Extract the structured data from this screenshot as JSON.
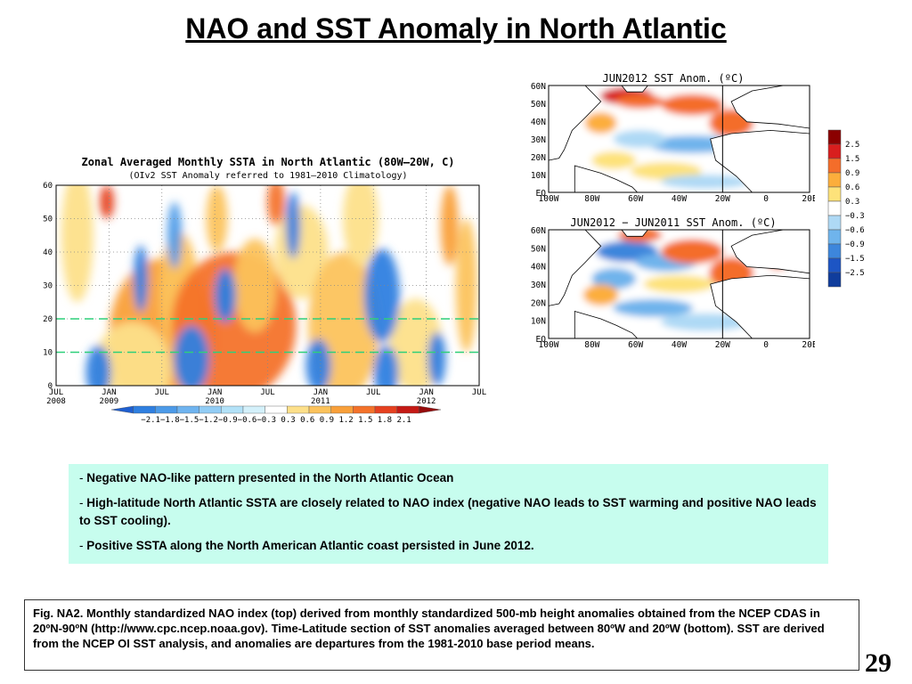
{
  "slide": {
    "title": "NAO and SST Anomaly in North Atlantic",
    "page_number": "29",
    "bullets": [
      "Negative NAO-like pattern presented in the North Atlantic Ocean",
      "High-latitude North Atlantic SSTA are closely related to NAO index (negative NAO leads to SST warming and positive NAO leads to SST cooling).",
      "Positive SSTA along the North American Atlantic coast persisted in June 2012."
    ],
    "caption": "Fig. NA2. Monthly standardized NAO index (top) derived from monthly standardized 500-mb height anomalies obtained from the NCEP CDAS in 20ºN-90ºN (http://www.cpc.ncep.noaa.gov).  Time-Latitude section of SST anomalies averaged between 80ºW and 20ºW (bottom). SST are derived from the NCEP OI SST analysis, and anomalies are departures from the 1981-2010 base period means."
  },
  "chart_data": [
    {
      "type": "heatmap",
      "title": "Zonal Averaged Monthly SSTA in North Atlantic (80W–20W, C)",
      "subtitle": "(OIv2 SST Anomaly referred to 1981–2010 Climatology)",
      "xlabel": "",
      "ylabel": "",
      "x_ticks": [
        "JUL\n2008",
        "JAN\n2009",
        "JUL",
        "JAN\n2010",
        "JUL",
        "JAN\n2011",
        "JUL",
        "JAN\n2012",
        "JUL"
      ],
      "y_ticks": [
        0,
        10,
        20,
        30,
        40,
        50,
        60
      ],
      "ylim": [
        0,
        60
      ],
      "reference_lines_y": [
        10,
        20
      ],
      "color_levels": [
        -2.1,
        -1.8,
        -1.5,
        -1.2,
        -0.9,
        -0.6,
        -0.3,
        0.3,
        0.6,
        0.9,
        1.2,
        1.5,
        1.8,
        2.1
      ],
      "colorbar_labels": "−2.1−1.8−1.5−1.2−0.9−0.6−0.3 0.3  0.6  0.9  1.2  1.5  1.8  2.1",
      "neg_colors": [
        "#1f5fd0",
        "#2f7fe0",
        "#4c9ae8",
        "#6fb4f0",
        "#92cdf5",
        "#b3e2f8",
        "#d4f1fb"
      ],
      "pos_colors": [
        "#fff3b0",
        "#fde08a",
        "#fcc35c",
        "#f9a03a",
        "#f4722a",
        "#e64120",
        "#c51a15",
        "#950c0c"
      ],
      "grid": "dotted"
    },
    {
      "type": "heatmap",
      "title": "JUN2012 SST Anom. (ºC)",
      "lat_labels": [
        "60N",
        "50N",
        "40N",
        "30N",
        "20N",
        "10N",
        "EQ"
      ],
      "lon_labels": [
        "100W",
        "80W",
        "60W",
        "40W",
        "20W",
        "0",
        "20E"
      ]
    },
    {
      "type": "heatmap",
      "title": "JUN2012 − JUN2011 SST Anom. (ºC)",
      "lat_labels": [
        "60N",
        "50N",
        "40N",
        "30N",
        "20N",
        "10N",
        "EQ"
      ],
      "lon_labels": [
        "100W",
        "80W",
        "60W",
        "40W",
        "20W",
        "0",
        "20E"
      ],
      "colorbar_levels": [
        "2.5",
        "1.5",
        "0.9",
        "0.6",
        "0.3",
        "−0.3",
        "−0.6",
        "−0.9",
        "−1.5",
        "−2.5"
      ],
      "colorbar_colors": [
        "#8b0000",
        "#d81e1e",
        "#f46d2a",
        "#fcae3c",
        "#fde27a",
        "#ffffff",
        "#aed9f5",
        "#6fb4ec",
        "#3d86dc",
        "#1d55c4",
        "#103d9c"
      ]
    }
  ]
}
